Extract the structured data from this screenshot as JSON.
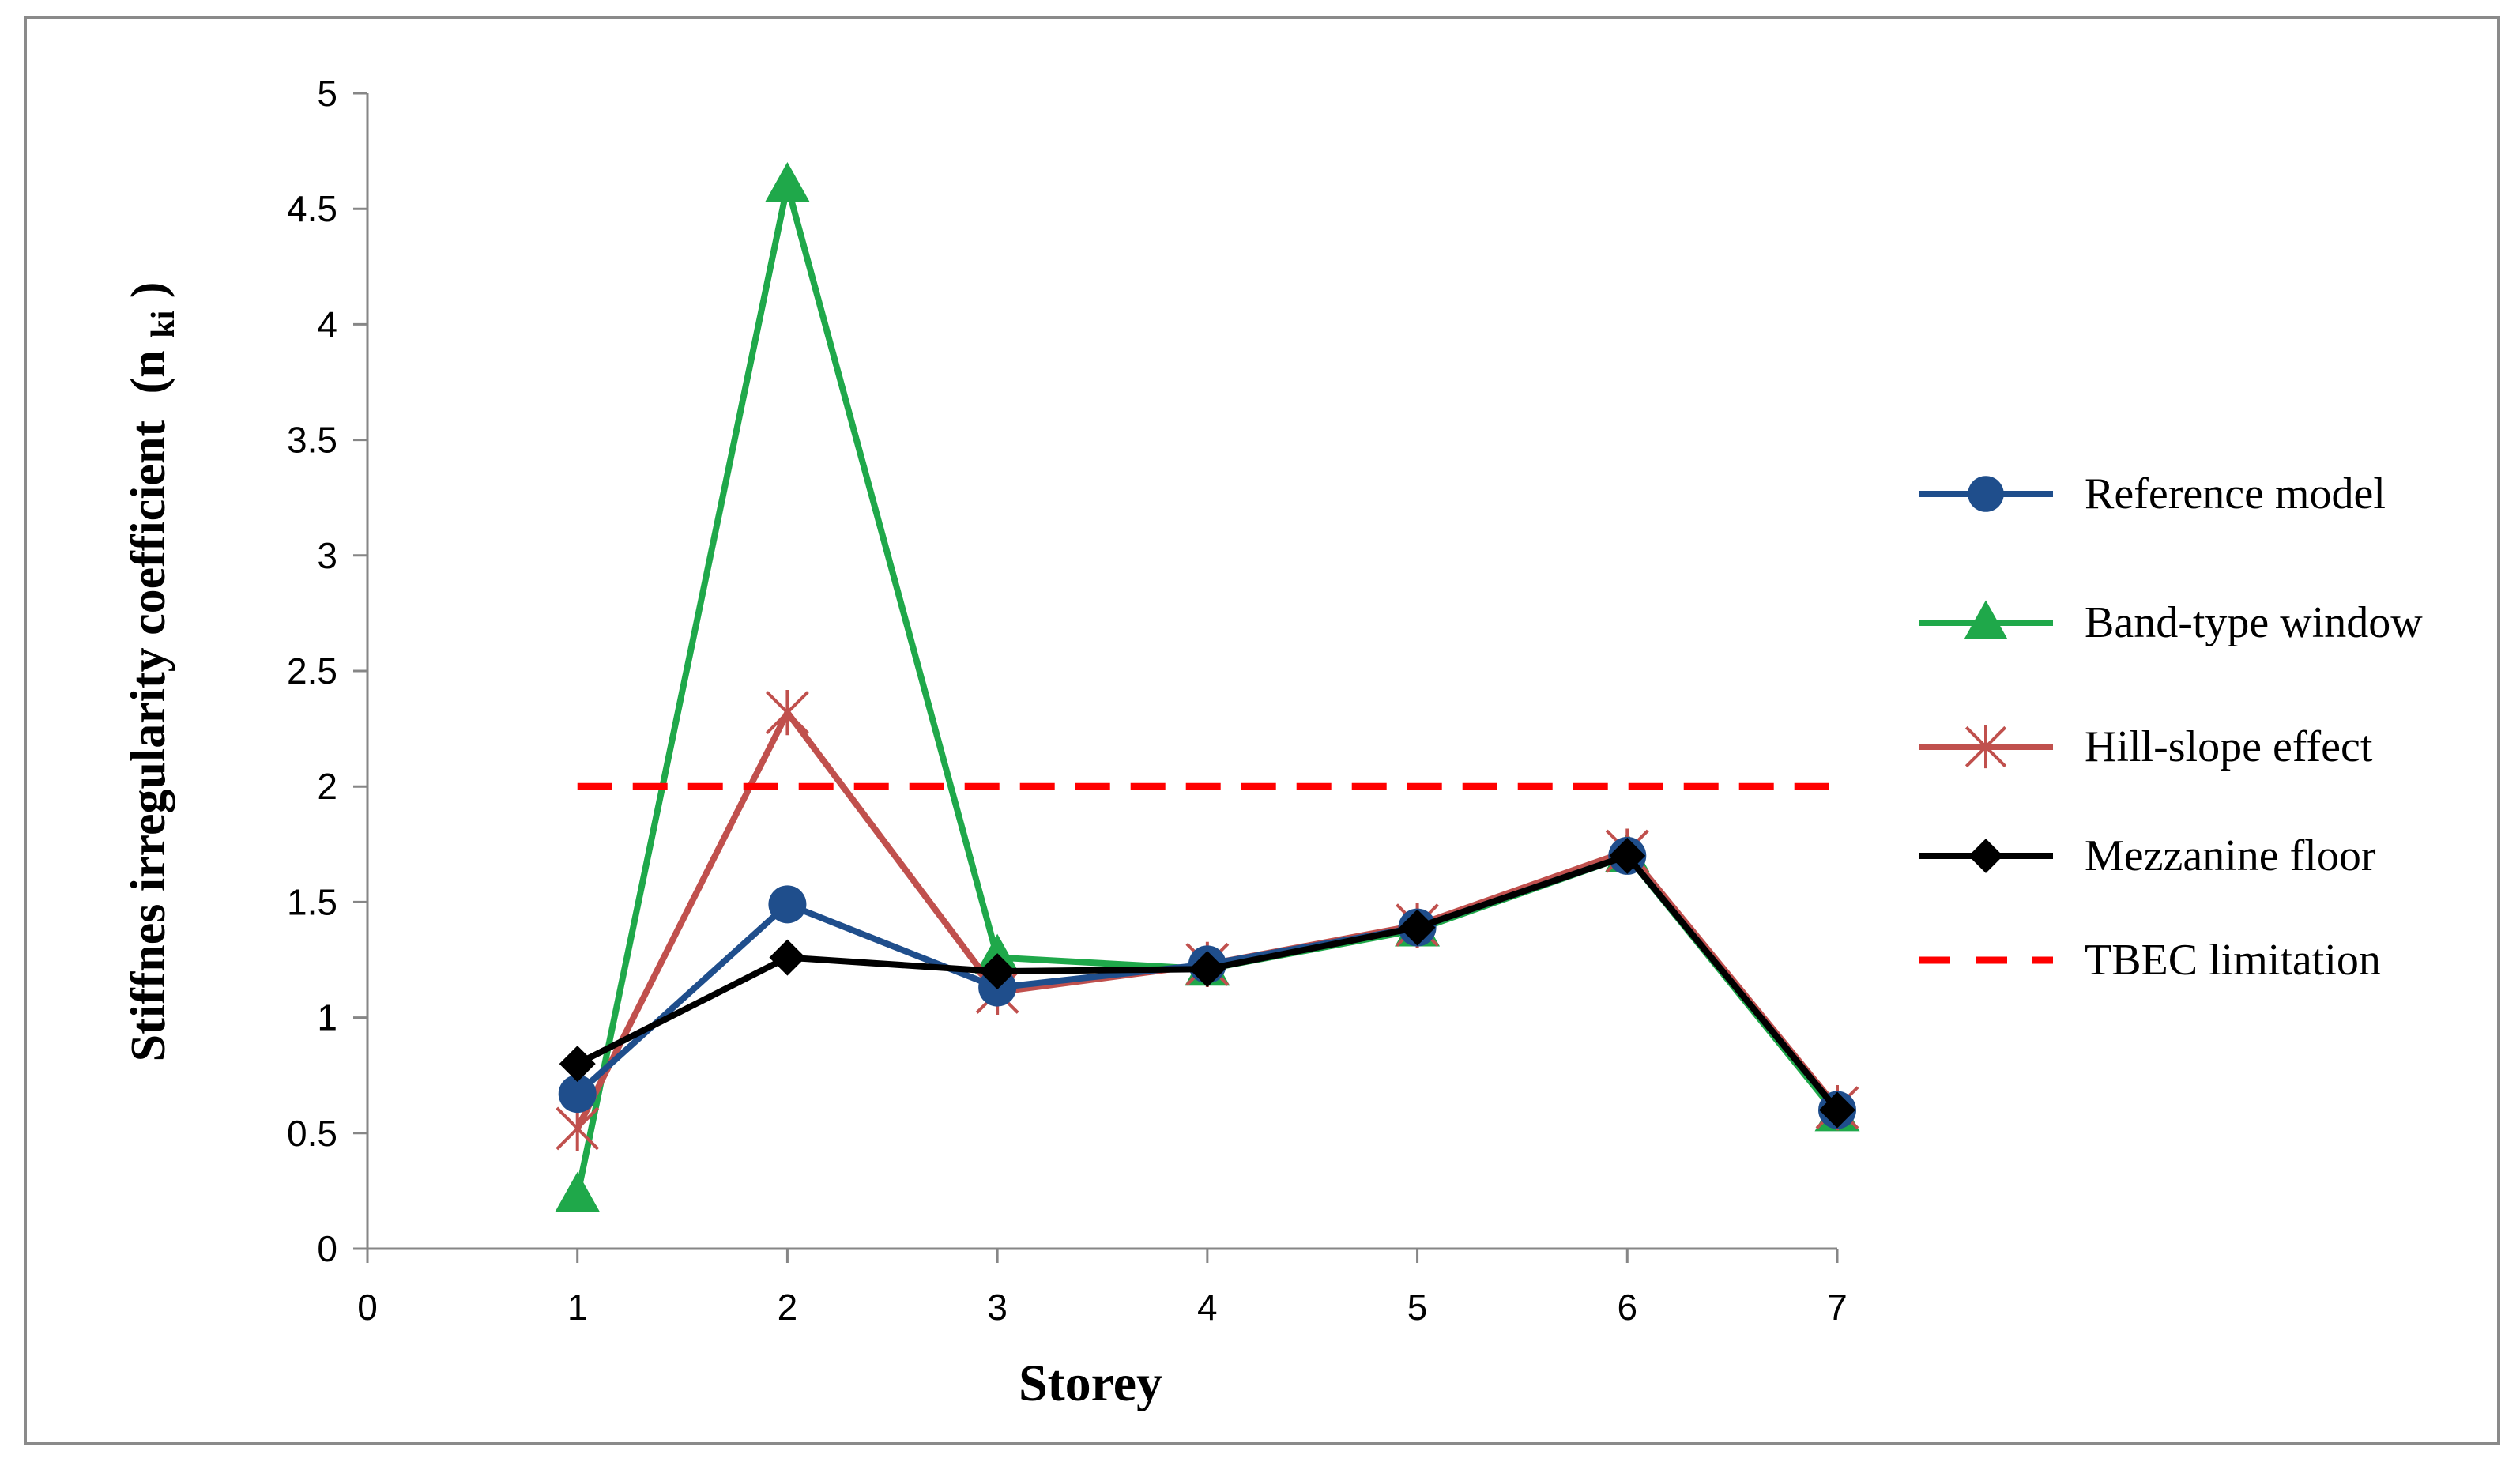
{
  "chart_data": {
    "type": "line",
    "xlabel": "Storey",
    "ylabel": "Stiffnes irregularity coefficient",
    "ylabel_symbol": "(n",
    "ylabel_subscript": "ki",
    "ylabel_close": ")",
    "xlim": [
      0,
      7
    ],
    "ylim": [
      0,
      5
    ],
    "x_ticks": [
      "0",
      "1",
      "2",
      "3",
      "4",
      "5",
      "6",
      "7"
    ],
    "y_ticks": [
      "0",
      "0.5",
      "1",
      "1.5",
      "2",
      "2.5",
      "3",
      "3.5",
      "4",
      "4.5",
      "5"
    ],
    "grid": false,
    "legend_position": "right",
    "x": [
      1,
      2,
      3,
      4,
      5,
      6,
      7
    ],
    "series": [
      {
        "name": "Reference model",
        "color": "#1F4E8C",
        "marker": "circle",
        "style": "solid",
        "values": [
          0.67,
          1.49,
          1.13,
          1.23,
          1.39,
          1.7,
          0.6
        ]
      },
      {
        "name": "Band-type window",
        "color": "#1FA84A",
        "marker": "triangle",
        "style": "solid",
        "values": [
          0.23,
          4.6,
          1.26,
          1.21,
          1.38,
          1.7,
          0.58
        ]
      },
      {
        "name": "Hill-slope effect",
        "color": "#C0504D",
        "marker": "star",
        "style": "solid",
        "values": [
          0.52,
          2.32,
          1.11,
          1.23,
          1.4,
          1.72,
          0.61
        ]
      },
      {
        "name": "Mezzanine floor",
        "color": "#000000",
        "marker": "diamond",
        "style": "solid",
        "values": [
          0.8,
          1.26,
          1.2,
          1.21,
          1.39,
          1.7,
          0.6
        ]
      },
      {
        "name": "TBEC limitation",
        "color": "#FF0000",
        "marker": "none",
        "style": "dashed",
        "x": [
          1,
          7
        ],
        "values": [
          2,
          2
        ]
      }
    ]
  }
}
